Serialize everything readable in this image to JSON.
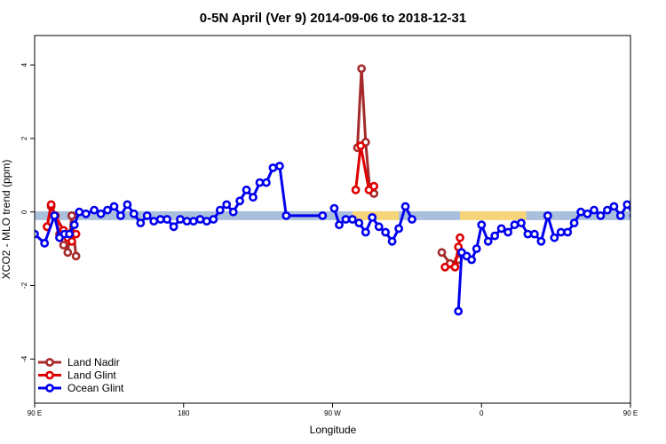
{
  "chart_data": {
    "type": "line",
    "title": "0-5N April (Ver 9)   2014-09-06 to 2018-12-31",
    "xlabel": "Longitude",
    "ylabel": "XCO2 - MLO trend (ppm)",
    "xlim": [
      90,
      450
    ],
    "ylim": [
      -5.2,
      4.8
    ],
    "x_ticks": [
      {
        "value": 90,
        "label": "90 E"
      },
      {
        "value": 180,
        "label": "180"
      },
      {
        "value": 270,
        "label": "90 W"
      },
      {
        "value": 360,
        "label": "0"
      },
      {
        "value": 450,
        "label": "90 E"
      },
      {
        "value": 540,
        "label": "180"
      }
    ],
    "y_ticks": [
      {
        "value": -4,
        "label": "-4"
      },
      {
        "value": -2,
        "label": "-2"
      },
      {
        "value": 0,
        "label": "0"
      },
      {
        "value": 2,
        "label": "2"
      },
      {
        "value": 4,
        "label": "4"
      }
    ],
    "background_band": {
      "y": -0.1,
      "segments": [
        {
          "from": 90,
          "to": 282,
          "color": "#a9bfdc"
        },
        {
          "from": 282,
          "to": 310,
          "color": "#f5d47a"
        },
        {
          "from": 310,
          "to": 347,
          "color": "#a9bfdc"
        },
        {
          "from": 347,
          "to": 387,
          "color": "#f5d47a"
        },
        {
          "from": 387,
          "to": 457,
          "color": "#a9bfdc"
        },
        {
          "from": 457,
          "to": 480,
          "color": "#f5d47a"
        },
        {
          "from": 480,
          "to": 540,
          "color": "#a9bfdc"
        }
      ]
    },
    "series": [
      {
        "name": "Land Nadir",
        "color": "#a52a2a",
        "segments": [
          [
            [
              97.5,
              -0.4
            ],
            [
              100,
              0.15
            ],
            [
              102.5,
              -0.1
            ],
            [
              105,
              -0.6
            ],
            [
              107.5,
              -0.9
            ],
            [
              110,
              -1.1
            ],
            [
              112.5,
              -0.1
            ],
            [
              115,
              -1.2
            ]
          ],
          [
            [
              285,
              1.75
            ],
            [
              287.5,
              3.9
            ],
            [
              290,
              1.9
            ],
            [
              292.5,
              0.6
            ],
            [
              295,
              0.5
            ]
          ],
          [
            [
              336,
              -1.1
            ],
            [
              341,
              -1.4
            ],
            [
              346,
              -1.3
            ]
          ],
          [
            [
              462,
              -0.4
            ],
            [
              465,
              0.2
            ],
            [
              467.5,
              -0.1
            ],
            [
              472.5,
              -1.1
            ],
            [
              475,
              -0.1
            ],
            [
              477.5,
              -1.2
            ]
          ]
        ]
      },
      {
        "name": "Land Glint",
        "color": "#e00000",
        "segments": [
          [
            [
              97.5,
              -0.4
            ],
            [
              100,
              0.2
            ],
            [
              102.5,
              -0.1
            ],
            [
              107.5,
              -0.5
            ],
            [
              110,
              -0.7
            ],
            [
              112.5,
              -0.8
            ],
            [
              115,
              -0.6
            ]
          ],
          [
            [
              284,
              0.6
            ],
            [
              287,
              1.8
            ],
            [
              292,
              0.6
            ],
            [
              295,
              0.7
            ]
          ],
          [
            [
              338,
              -1.5
            ],
            [
              344,
              -1.5
            ],
            [
              346,
              -0.95
            ],
            [
              347,
              -0.7
            ]
          ],
          [
            [
              462,
              -0.4
            ],
            [
              465,
              0.2
            ],
            [
              472,
              -0.7
            ],
            [
              475,
              -0.8
            ]
          ]
        ]
      },
      {
        "name": "Ocean Glint",
        "color": "#0000ee",
        "segments": [
          [
            [
              90,
              -0.6
            ],
            [
              96,
              -0.85
            ],
            [
              102,
              -0.1
            ],
            [
              105,
              -0.7
            ],
            [
              108,
              -0.6
            ],
            [
              111,
              -0.6
            ],
            [
              114,
              -0.35
            ],
            [
              117,
              0.0
            ],
            [
              121,
              -0.05
            ],
            [
              126,
              0.05
            ],
            [
              130,
              -0.05
            ],
            [
              134,
              0.05
            ],
            [
              138,
              0.15
            ],
            [
              142,
              -0.1
            ],
            [
              146,
              0.2
            ],
            [
              150,
              -0.05
            ],
            [
              154,
              -0.3
            ],
            [
              158,
              -0.1
            ],
            [
              162,
              -0.25
            ],
            [
              166,
              -0.2
            ],
            [
              170,
              -0.2
            ],
            [
              174,
              -0.4
            ],
            [
              178,
              -0.2
            ],
            [
              182,
              -0.25
            ],
            [
              186,
              -0.25
            ],
            [
              190,
              -0.2
            ],
            [
              194,
              -0.25
            ],
            [
              198,
              -0.2
            ],
            [
              202,
              0.05
            ],
            [
              206,
              0.2
            ],
            [
              210,
              0.0
            ],
            [
              214,
              0.3
            ],
            [
              218,
              0.6
            ],
            [
              222,
              0.4
            ],
            [
              226,
              0.8
            ],
            [
              230,
              0.8
            ],
            [
              234,
              1.2
            ],
            [
              238,
              1.25
            ],
            [
              242,
              -0.1
            ],
            [
              264,
              -0.1
            ]
          ],
          [
            [
              271,
              0.1
            ],
            [
              274,
              -0.35
            ],
            [
              278,
              -0.2
            ],
            [
              282,
              -0.2
            ],
            [
              286,
              -0.3
            ],
            [
              290,
              -0.55
            ],
            [
              294,
              -0.15
            ],
            [
              298,
              -0.4
            ],
            [
              302,
              -0.55
            ],
            [
              306,
              -0.8
            ],
            [
              310,
              -0.45
            ],
            [
              314,
              0.15
            ],
            [
              318,
              -0.2
            ]
          ],
          [
            [
              346,
              -2.7
            ],
            [
              348,
              -1.1
            ],
            [
              351,
              -1.2
            ],
            [
              354,
              -1.3
            ],
            [
              357,
              -1.0
            ],
            [
              360,
              -0.35
            ],
            [
              364,
              -0.8
            ],
            [
              368,
              -0.65
            ],
            [
              372,
              -0.45
            ],
            [
              376,
              -0.55
            ],
            [
              380,
              -0.35
            ],
            [
              384,
              -0.3
            ],
            [
              388,
              -0.6
            ],
            [
              392,
              -0.6
            ],
            [
              396,
              -0.8
            ],
            [
              400,
              -0.1
            ],
            [
              404,
              -0.7
            ],
            [
              408,
              -0.55
            ],
            [
              412,
              -0.55
            ],
            [
              416,
              -0.3
            ],
            [
              420,
              0.0
            ],
            [
              424,
              -0.05
            ],
            [
              428,
              0.05
            ],
            [
              432,
              -0.1
            ],
            [
              436,
              0.05
            ],
            [
              440,
              0.15
            ],
            [
              444,
              -0.1
            ],
            [
              448,
              0.2
            ],
            [
              452,
              -0.1
            ],
            [
              456,
              -0.3
            ],
            [
              460,
              -0.1
            ]
          ]
        ],
        "clip": true
      }
    ],
    "legend": {
      "position": "bottom-left",
      "entries": [
        {
          "label": "Land Nadir",
          "color": "#a52a2a"
        },
        {
          "label": "Land Glint",
          "color": "#e00000"
        },
        {
          "label": "Ocean Glint",
          "color": "#0000ee"
        }
      ]
    }
  }
}
